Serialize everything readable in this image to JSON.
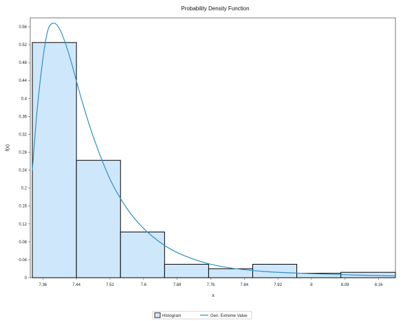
{
  "chart_data": {
    "type": "bar",
    "title": "Probability Density Function",
    "xlabel": "x",
    "ylabel": "f(x)",
    "xlim": [
      7.33,
      8.2
    ],
    "ylim": [
      0,
      0.58
    ],
    "x_ticks": [
      "7.36",
      "7.44",
      "7.52",
      "7.6",
      "7.68",
      "7.76",
      "7.84",
      "7.92",
      "8",
      "8.08",
      "8.16"
    ],
    "y_ticks": [
      "0",
      "0.04",
      "0.08",
      "0.12",
      "0.16",
      "0.2",
      "0.24",
      "0.28",
      "0.32",
      "0.36",
      "0.4",
      "0.44",
      "0.48",
      "0.52",
      "0.56"
    ],
    "histogram": {
      "name": "Histogram",
      "bin_edges": [
        7.335,
        7.44,
        7.545,
        7.65,
        7.755,
        7.86,
        7.965,
        8.07,
        8.2
      ],
      "values": [
        0.525,
        0.262,
        0.102,
        0.03,
        0.02,
        0.03,
        0.01,
        0.012
      ],
      "fill": "#cfe7fb",
      "stroke": "#000000"
    },
    "curve": {
      "name": "Gen. Extreme Value",
      "color": "#2b8fc4",
      "points": [
        [
          7.335,
          0.24
        ],
        [
          7.345,
          0.36
        ],
        [
          7.355,
          0.45
        ],
        [
          7.365,
          0.52
        ],
        [
          7.375,
          0.56
        ],
        [
          7.39,
          0.567
        ],
        [
          7.405,
          0.545
        ],
        [
          7.425,
          0.49
        ],
        [
          7.45,
          0.405
        ],
        [
          7.48,
          0.315
        ],
        [
          7.52,
          0.22
        ],
        [
          7.56,
          0.155
        ],
        [
          7.6,
          0.11
        ],
        [
          7.65,
          0.072
        ],
        [
          7.7,
          0.048
        ],
        [
          7.76,
          0.03
        ],
        [
          7.82,
          0.02
        ],
        [
          7.9,
          0.013
        ],
        [
          8.0,
          0.009
        ],
        [
          8.1,
          0.006
        ],
        [
          8.2,
          0.004
        ]
      ]
    },
    "grid": false,
    "legend_position": "bottom"
  }
}
